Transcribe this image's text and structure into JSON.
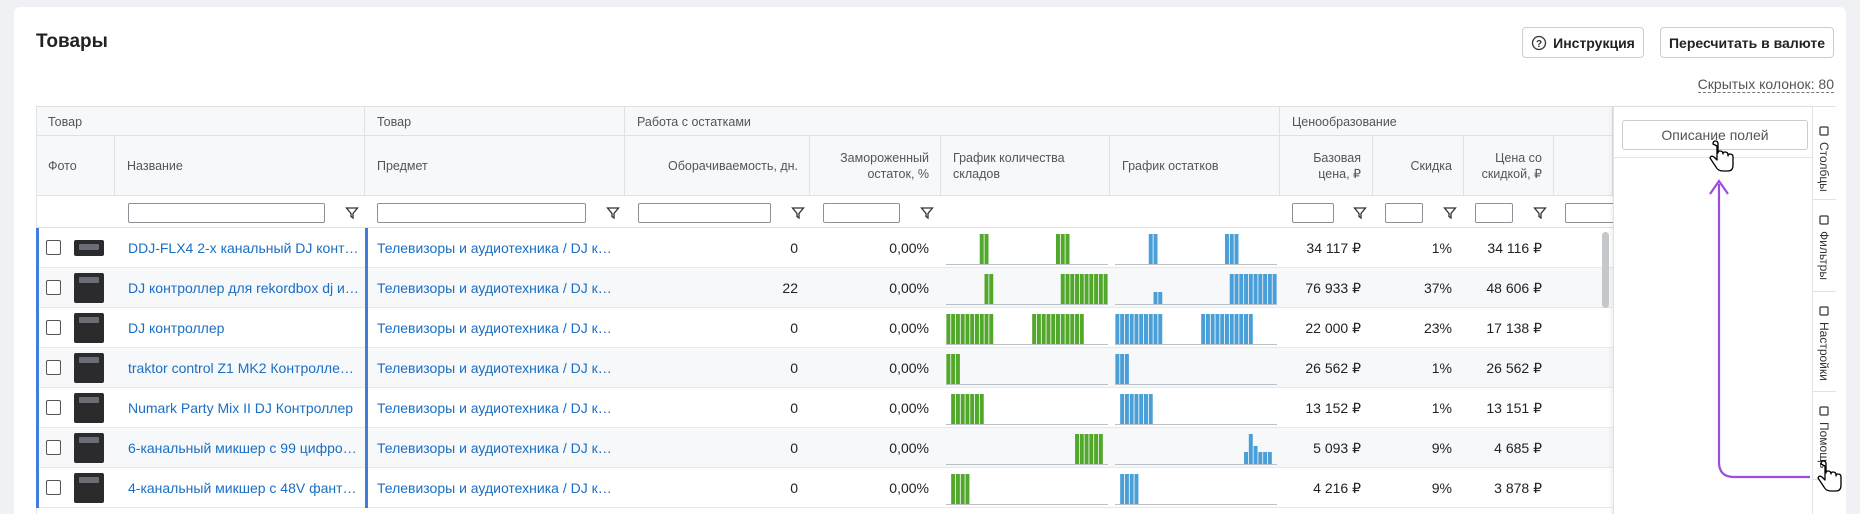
{
  "header": {
    "title": "Товары",
    "buttons": [
      "Инструкция",
      "Пересчитать в валюте"
    ],
    "hidden_columns": "Скрытых колонок: 80"
  },
  "table": {
    "groups": [
      "Товар",
      "Товар",
      "Работа с остатками",
      "Ценообразование"
    ],
    "columns": [
      "Фото",
      "Название",
      "Предмет",
      "Оборачиваемость, дн.",
      "Замороженный остаток, %",
      "График количества складов",
      "График остатков",
      "Базовая цена, ₽",
      "Скидка",
      "Цена со скидкой, ₽"
    ],
    "rows": [
      {
        "name": "DDJ-FLX4 2-х канальный DJ конт…",
        "subject": "Телевизоры и аудиотехника / DJ к…",
        "turnover": "0",
        "frozen": "0,00%",
        "base_price": "34 117 ₽",
        "discount": "1%",
        "discount_price": "34 116 ₽",
        "warehouse_chart": [
          0,
          0,
          0,
          0,
          0,
          0,
          0,
          1,
          1,
          0,
          0,
          0,
          0,
          0,
          0,
          0,
          0,
          0,
          0,
          0,
          0,
          0,
          0,
          1,
          1,
          1,
          0,
          0,
          0,
          0,
          0,
          0,
          0,
          0
        ],
        "stock_chart": [
          0,
          0,
          0,
          0,
          0,
          0,
          0,
          1,
          1,
          0,
          0,
          0,
          0,
          0,
          0,
          0,
          0,
          0,
          0,
          0,
          0,
          0,
          0,
          1,
          1,
          1,
          0,
          0,
          0,
          0,
          0,
          0,
          0,
          0
        ]
      },
      {
        "name": "DJ контроллер для rekordbox dj и…",
        "subject": "Телевизоры и аудиотехника / DJ к…",
        "turnover": "22",
        "frozen": "0,00%",
        "base_price": "76 933 ₽",
        "discount": "37%",
        "discount_price": "48 606 ₽",
        "warehouse_chart": [
          0,
          0,
          0,
          0,
          0,
          0,
          0,
          0,
          1,
          1,
          0,
          0,
          0,
          0,
          0,
          0,
          0,
          0,
          0,
          0,
          0,
          0,
          0,
          0,
          1,
          1,
          1,
          1,
          1,
          1,
          1,
          1,
          1,
          1
        ],
        "stock_chart": [
          0,
          0,
          0,
          0,
          0,
          0,
          0,
          0,
          0.4,
          0.4,
          0,
          0,
          0,
          0,
          0,
          0,
          0,
          0,
          0,
          0,
          0,
          0,
          0,
          0,
          1,
          1,
          1,
          1,
          1,
          1,
          1,
          1,
          1,
          1
        ]
      },
      {
        "name": "DJ контроллер",
        "subject": "Телевизоры и аудиотехника / DJ к…",
        "turnover": "0",
        "frozen": "0,00%",
        "base_price": "22 000 ₽",
        "discount": "23%",
        "discount_price": "17 138 ₽",
        "warehouse_chart": [
          1,
          1,
          1,
          1,
          1,
          1,
          1,
          1,
          1,
          1,
          0,
          0,
          0,
          0,
          0,
          0,
          0,
          0,
          1,
          1,
          1,
          1,
          1,
          1,
          1,
          1,
          1,
          1,
          1,
          0,
          0,
          0,
          0,
          0
        ],
        "stock_chart": [
          1,
          1,
          1,
          1,
          1,
          1,
          1,
          1,
          1,
          1,
          0,
          0,
          0,
          0,
          0,
          0,
          0,
          0,
          1,
          1,
          1,
          1,
          1,
          1,
          1,
          1,
          1,
          1,
          1,
          0,
          0,
          0,
          0,
          0
        ]
      },
      {
        "name": "traktor control Z1 MK2 Контролле…",
        "subject": "Телевизоры и аудиотехника / DJ к…",
        "turnover": "0",
        "frozen": "0,00%",
        "base_price": "26 562 ₽",
        "discount": "1%",
        "discount_price": "26 562 ₽",
        "warehouse_chart": [
          1,
          1,
          1,
          0,
          0,
          0,
          0,
          0,
          0,
          0,
          0,
          0,
          0,
          0,
          0,
          0,
          0,
          0,
          0,
          0,
          0,
          0,
          0,
          0,
          0,
          0,
          0,
          0,
          0,
          0,
          0,
          0,
          0,
          0
        ],
        "stock_chart": [
          1,
          1,
          1,
          0,
          0,
          0,
          0,
          0,
          0,
          0,
          0,
          0,
          0,
          0,
          0,
          0,
          0,
          0,
          0,
          0,
          0,
          0,
          0,
          0,
          0,
          0,
          0,
          0,
          0,
          0,
          0,
          0,
          0,
          0
        ]
      },
      {
        "name": "Numark Party Mix II DJ Контроллер",
        "subject": "Телевизоры и аудиотехника / DJ к…",
        "turnover": "0",
        "frozen": "0,00%",
        "base_price": "13 152 ₽",
        "discount": "1%",
        "discount_price": "13 151 ₽",
        "warehouse_chart": [
          0,
          1,
          1,
          1,
          1,
          1,
          1,
          1,
          0,
          0,
          0,
          0,
          0,
          0,
          0,
          0,
          0,
          0,
          0,
          0,
          0,
          0,
          0,
          0,
          0,
          0,
          0,
          0,
          0,
          0,
          0,
          0,
          0,
          0
        ],
        "stock_chart": [
          0,
          1,
          1,
          1,
          1,
          1,
          1,
          1,
          0,
          0,
          0,
          0,
          0,
          0,
          0,
          0,
          0,
          0,
          0,
          0,
          0,
          0,
          0,
          0,
          0,
          0,
          0,
          0,
          0,
          0,
          0,
          0,
          0,
          0
        ]
      },
      {
        "name": "6-канальный микшер с 99 цифро…",
        "subject": "Телевизоры и аудиотехника / DJ к…",
        "turnover": "0",
        "frozen": "0,00%",
        "base_price": "5 093 ₽",
        "discount": "9%",
        "discount_price": "4 685 ₽",
        "warehouse_chart": [
          0,
          0,
          0,
          0,
          0,
          0,
          0,
          0,
          0,
          0,
          0,
          0,
          0,
          0,
          0,
          0,
          0,
          0,
          0,
          0,
          0,
          0,
          0,
          0,
          0,
          0,
          0,
          1,
          1,
          1,
          1,
          1,
          1,
          0
        ],
        "stock_chart": [
          0,
          0,
          0,
          0,
          0,
          0,
          0,
          0,
          0,
          0,
          0,
          0,
          0,
          0,
          0,
          0,
          0,
          0,
          0,
          0,
          0,
          0,
          0,
          0,
          0,
          0,
          0,
          0.4,
          1,
          0.6,
          0.4,
          0.4,
          0.4,
          0
        ]
      },
      {
        "name": "4-канальный микшер с 48V фант…",
        "subject": "Телевизоры и аудиотехника / DJ к…",
        "turnover": "0",
        "frozen": "0,00%",
        "base_price": "4 216 ₽",
        "discount": "9%",
        "discount_price": "3 878 ₽",
        "warehouse_chart": [
          0,
          1,
          1,
          1,
          1,
          0,
          0,
          0,
          0,
          0,
          0,
          0,
          0,
          0,
          0,
          0,
          0,
          0,
          0,
          0,
          0,
          0,
          0,
          0,
          0,
          0,
          0,
          0,
          0,
          0,
          0,
          0,
          0,
          0
        ],
        "stock_chart": [
          0,
          1,
          1,
          1,
          1,
          0,
          0,
          0,
          0,
          0,
          0,
          0,
          0,
          0,
          0,
          0,
          0,
          0,
          0,
          0,
          0,
          0,
          0,
          0,
          0,
          0,
          0,
          0,
          0,
          0,
          0,
          0,
          0,
          0
        ]
      }
    ]
  },
  "panel": {
    "button": "Описание полей",
    "tabs": [
      "Столбцы",
      "Фильтры",
      "Настройки",
      "Помощь"
    ]
  }
}
